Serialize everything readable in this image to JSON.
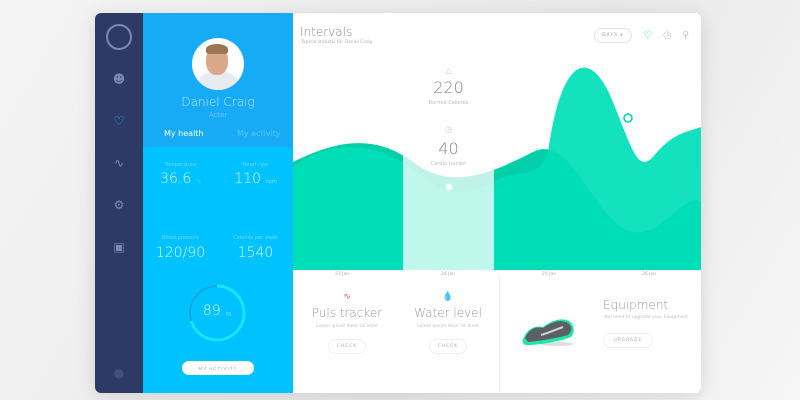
{
  "sidebar": {
    "icons": [
      "logo-icon",
      "user-icon",
      "heart-icon",
      "activity-icon",
      "gear-icon",
      "medkit-icon",
      "dot-icon"
    ]
  },
  "profile": {
    "name": "Daniel Craig",
    "role": "Actor",
    "tabs": [
      "My health",
      "My activity"
    ],
    "stats": [
      {
        "label": "Temperature",
        "value": "36.6",
        "unit": "°c"
      },
      {
        "label": "Heart rate",
        "value": "110",
        "unit": "bpm"
      },
      {
        "label": "Blood pressure",
        "value": "120/90",
        "unit": ""
      },
      {
        "label": "Calories per week",
        "value": "1540",
        "unit": ""
      }
    ],
    "weight": {
      "value": "89",
      "unit": "kg",
      "progress": 0.7
    },
    "activity_button": "MY ACTIVITY"
  },
  "header": {
    "title": "Intervals",
    "subtitle": "Typical statistic for Daniel Craig",
    "range_select": "DAYS ▾",
    "icons": [
      "heart-icon",
      "clock-icon",
      "location-icon"
    ],
    "accent": "#00dbb5"
  },
  "summary": [
    {
      "value": "220",
      "label": "Burned Calories",
      "icon": "fire-icon"
    },
    {
      "value": "40",
      "label": "Cardio tracker",
      "icon": "clock-icon"
    }
  ],
  "chart_data": {
    "type": "area",
    "x": [
      "23 Jan",
      "24 Jan",
      "25 Jan",
      "26 Jan"
    ]
  },
  "features": [
    {
      "title": "Puls tracker",
      "desc": "Lorem ipsum dolor sit amet",
      "button": "CHECK",
      "icon": "pulse-icon",
      "color": "#ff3d8b"
    },
    {
      "title": "Water level",
      "desc": "Lorem ipsum dolor sit amet",
      "button": "CHECK",
      "icon": "drop-icon",
      "color": "#1aa7f5"
    }
  ],
  "equipment": {
    "title": "Equipment",
    "desc": "You need to upgrade your Equipment",
    "button": "UPGRADE"
  }
}
